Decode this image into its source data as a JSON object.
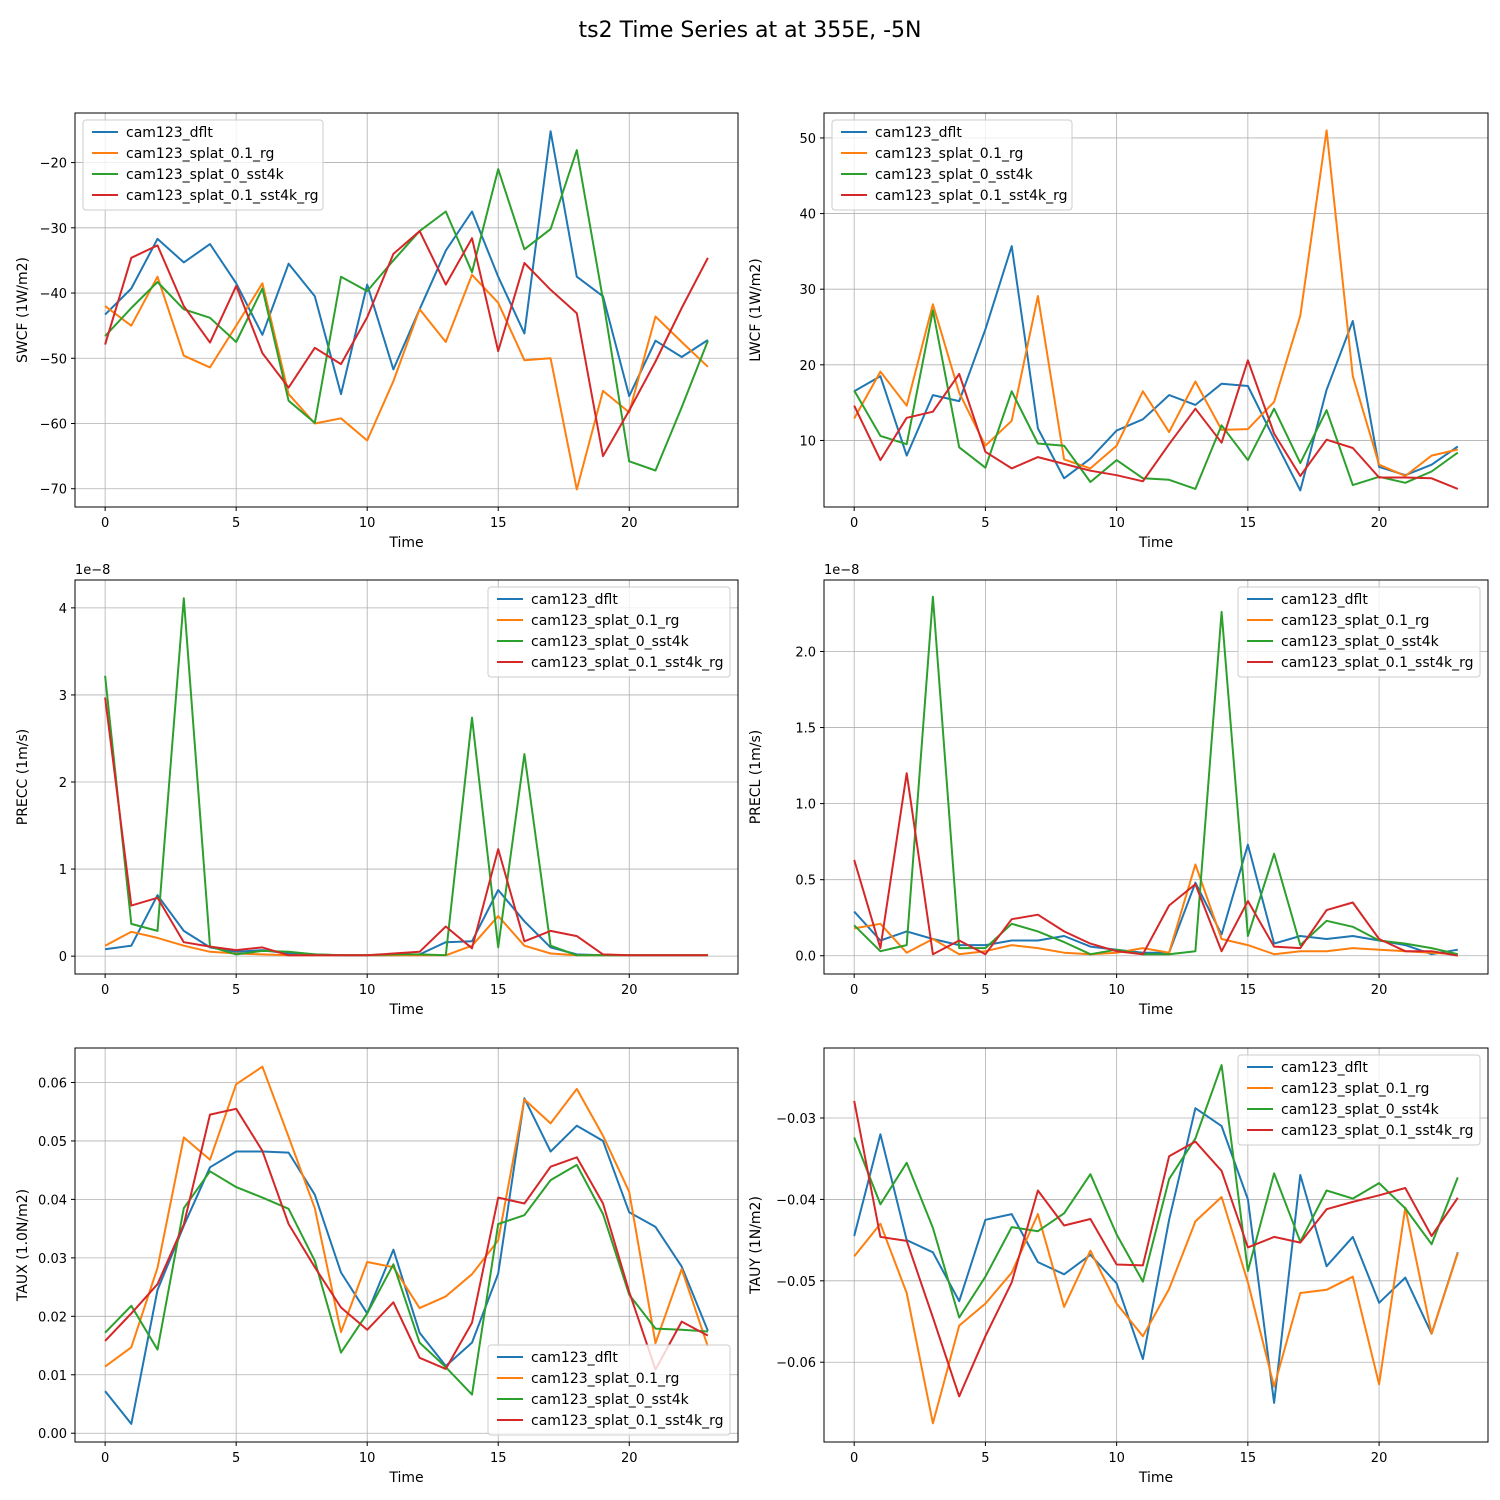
{
  "title": "ts2 Time Series at at 355E, -5N",
  "colors": [
    "#1f77b4",
    "#ff7f0e",
    "#2ca02c",
    "#d62728"
  ],
  "chart_data": [
    {
      "type": "line",
      "ylabel": "SWCF (1W/m2)",
      "xlabel": "Time",
      "xlim": [
        -1.15,
        24.15
      ],
      "ylim": [
        -72.8,
        -12.4
      ],
      "xticks": [
        0,
        5,
        10,
        15,
        20
      ],
      "yticks": [
        -70,
        -60,
        -50,
        -40,
        -30,
        -20
      ],
      "yticklabels": [
        "−70",
        "−60",
        "−50",
        "−40",
        "−30",
        "−20"
      ],
      "offset": "",
      "legend": "upper-left",
      "x": [
        0,
        1,
        2,
        3,
        4,
        5,
        6,
        7,
        8,
        9,
        10,
        11,
        12,
        13,
        14,
        15,
        16,
        17,
        18,
        19,
        20,
        21,
        22,
        23
      ],
      "series": [
        {
          "name": "cam123_dflt",
          "values": [
            -43.3,
            -39.3,
            -31.7,
            -35.3,
            -32.5,
            -38.5,
            -46.4,
            -35.5,
            -40.5,
            -55.5,
            -38.7,
            -51.7,
            -42.5,
            -33.5,
            -27.5,
            -37.5,
            -46.2,
            -15.2,
            -37.5,
            -40.5,
            -55.8,
            -47.3,
            -49.8,
            -47.2
          ]
        },
        {
          "name": "cam123_splat_0.1_rg",
          "values": [
            -42,
            -45,
            -37.5,
            -49.6,
            -51.4,
            -45,
            -38.5,
            -55.5,
            -60,
            -59.2,
            -62.6,
            -53.5,
            -42.5,
            -47.5,
            -37.2,
            -41.5,
            -50.3,
            -50,
            -70.1,
            -55,
            -58.3,
            -43.6,
            -47.5,
            -51.3
          ]
        },
        {
          "name": "cam123_splat_0_sst4k",
          "values": [
            -46.6,
            -42.3,
            -38.3,
            -42.5,
            -43.8,
            -47.5,
            -39.3,
            -56.5,
            -59.9,
            -37.5,
            -39.7,
            -35,
            -30.5,
            -27.5,
            -36.8,
            -21,
            -33.3,
            -30.2,
            -18.1,
            -41,
            -65.8,
            -67.2,
            -57.5,
            -47.3
          ]
        },
        {
          "name": "cam123_splat_0.1_sst4k_rg",
          "values": [
            -47.9,
            -34.6,
            -32.7,
            -42,
            -47.6,
            -38.9,
            -49.2,
            -54.5,
            -48.4,
            -50.9,
            -43.7,
            -34,
            -30.5,
            -38.7,
            -31.6,
            -48.9,
            -35.4,
            -39.5,
            -43.1,
            -65,
            -58,
            -50.5,
            -42.3,
            -34.6
          ]
        }
      ]
    },
    {
      "type": "line",
      "ylabel": "LWCF (1W/m2)",
      "xlabel": "Time",
      "xlim": [
        -1.15,
        24.15
      ],
      "ylim": [
        1.2,
        53.3
      ],
      "xticks": [
        0,
        5,
        10,
        15,
        20
      ],
      "yticks": [
        10,
        20,
        30,
        40,
        50
      ],
      "yticklabels": [
        "10",
        "20",
        "30",
        "40",
        "50"
      ],
      "offset": "",
      "legend": "upper-left",
      "x": [
        0,
        1,
        2,
        3,
        4,
        5,
        6,
        7,
        8,
        9,
        10,
        11,
        12,
        13,
        14,
        15,
        16,
        17,
        18,
        19,
        20,
        21,
        22,
        23
      ],
      "series": [
        {
          "name": "cam123_dflt",
          "values": [
            16.5,
            18.5,
            8,
            16,
            15.2,
            24.7,
            35.7,
            11.6,
            5,
            7.6,
            11.3,
            12.8,
            16,
            14.7,
            17.5,
            17.2,
            10.2,
            3.4,
            16.7,
            25.8,
            6.5,
            5.4,
            6.8,
            9.2
          ]
        },
        {
          "name": "cam123_splat_0.1_rg",
          "values": [
            12.9,
            19.1,
            14.6,
            28,
            16.3,
            9.3,
            12.6,
            29.1,
            7.5,
            6.3,
            9.3,
            16.5,
            11.1,
            17.8,
            11.4,
            11.5,
            15.1,
            26.5,
            51,
            18.5,
            6.8,
            5.3,
            8,
            8.8
          ]
        },
        {
          "name": "cam123_splat_0_sst4k",
          "values": [
            16.6,
            10.6,
            9.5,
            27.2,
            9.1,
            6.4,
            16.5,
            9.6,
            9.3,
            4.5,
            7.4,
            5,
            4.8,
            3.6,
            12,
            7.4,
            14.2,
            7,
            14,
            4.1,
            5.2,
            4.4,
            5.9,
            8.4
          ]
        },
        {
          "name": "cam123_splat_0.1_sst4k_rg",
          "values": [
            14.6,
            7.4,
            13,
            13.8,
            18.8,
            8.5,
            6.3,
            7.8,
            6.9,
            6,
            5.4,
            4.6,
            9.5,
            14.2,
            9.7,
            20.6,
            10.9,
            5.3,
            10.1,
            9,
            5.1,
            5.1,
            5,
            3.6
          ]
        }
      ]
    },
    {
      "type": "line",
      "ylabel": "PRECC (1m/s)",
      "xlabel": "Time",
      "xlim": [
        -1.15,
        24.15
      ],
      "ylim": [
        -0.205,
        4.32
      ],
      "xticks": [
        0,
        5,
        10,
        15,
        20
      ],
      "yticks": [
        0,
        1,
        2,
        3,
        4
      ],
      "yticklabels": [
        "0",
        "1",
        "2",
        "3",
        "4"
      ],
      "offset": "1e−8",
      "legend": "upper-right",
      "x": [
        0,
        1,
        2,
        3,
        4,
        5,
        6,
        7,
        8,
        9,
        10,
        11,
        12,
        13,
        14,
        15,
        16,
        17,
        18,
        19,
        20,
        21,
        22,
        23
      ],
      "series": [
        {
          "name": "cam123_dflt",
          "values": [
            0.08,
            0.12,
            0.7,
            0.29,
            0.1,
            0.05,
            0.07,
            0.03,
            0.02,
            0.01,
            0.01,
            0.01,
            0.02,
            0.16,
            0.17,
            0.76,
            0.4,
            0.1,
            0.02,
            0.01,
            0.01,
            0.01,
            0.01,
            0.01
          ]
        },
        {
          "name": "cam123_splat_0.1_rg",
          "values": [
            0.12,
            0.28,
            0.21,
            0.12,
            0.05,
            0.03,
            0.02,
            0.01,
            0.01,
            0.01,
            0.01,
            0.01,
            0.01,
            0.01,
            0.12,
            0.46,
            0.12,
            0.03,
            0.01,
            0.01,
            0.01,
            0.01,
            0.01,
            0.01
          ]
        },
        {
          "name": "cam123_splat_0_sst4k",
          "values": [
            3.22,
            0.37,
            0.29,
            4.11,
            0.11,
            0.02,
            0.06,
            0.05,
            0.02,
            0.01,
            0.01,
            0.02,
            0.02,
            0.01,
            2.74,
            0.1,
            2.32,
            0.12,
            0.01,
            0.01,
            0.01,
            0.01,
            0.01,
            0.01
          ]
        },
        {
          "name": "cam123_splat_0.1_sst4k_rg",
          "values": [
            2.97,
            0.58,
            0.67,
            0.16,
            0.11,
            0.07,
            0.1,
            0.01,
            0.01,
            0.01,
            0.01,
            0.03,
            0.05,
            0.34,
            0.09,
            1.23,
            0.17,
            0.29,
            0.23,
            0.02,
            0.01,
            0.01,
            0.01,
            0.01
          ]
        }
      ]
    },
    {
      "type": "line",
      "ylabel": "PRECL (1m/s)",
      "xlabel": "Time",
      "xlim": [
        -1.15,
        24.15
      ],
      "ylim": [
        -0.12,
        2.47
      ],
      "xticks": [
        0,
        5,
        10,
        15,
        20
      ],
      "yticks": [
        0,
        0.5,
        1.0,
        1.5,
        2.0
      ],
      "yticklabels": [
        "0.0",
        "0.5",
        "1.0",
        "1.5",
        "2.0"
      ],
      "offset": "1e−8",
      "legend": "upper-right",
      "x": [
        0,
        1,
        2,
        3,
        4,
        5,
        6,
        7,
        8,
        9,
        10,
        11,
        12,
        13,
        14,
        15,
        16,
        17,
        18,
        19,
        20,
        21,
        22,
        23
      ],
      "series": [
        {
          "name": "cam123_dflt",
          "values": [
            0.29,
            0.1,
            0.16,
            0.11,
            0.07,
            0.07,
            0.1,
            0.1,
            0.13,
            0.06,
            0.04,
            0.02,
            0.02,
            0.48,
            0.14,
            0.73,
            0.08,
            0.13,
            0.11,
            0.13,
            0.1,
            0.07,
            0.01,
            0.04
          ]
        },
        {
          "name": "cam123_splat_0.1_rg",
          "values": [
            0.18,
            0.21,
            0.02,
            0.11,
            0.01,
            0.03,
            0.07,
            0.05,
            0.02,
            0.01,
            0.02,
            0.05,
            0.02,
            0.6,
            0.11,
            0.07,
            0.01,
            0.03,
            0.03,
            0.05,
            0.04,
            0.03,
            0.02,
            0.01
          ]
        },
        {
          "name": "cam123_splat_0_sst4k",
          "values": [
            0.2,
            0.03,
            0.07,
            2.36,
            0.05,
            0.05,
            0.21,
            0.16,
            0.09,
            0.01,
            0.04,
            0.01,
            0.01,
            0.03,
            2.26,
            0.13,
            0.67,
            0.07,
            0.23,
            0.19,
            0.1,
            0.08,
            0.05,
            0.01
          ]
        },
        {
          "name": "cam123_splat_0.1_sst4k_rg",
          "values": [
            0.63,
            0.05,
            1.2,
            0.01,
            0.1,
            0.01,
            0.24,
            0.27,
            0.16,
            0.08,
            0.03,
            0.01,
            0.33,
            0.47,
            0.03,
            0.36,
            0.06,
            0.05,
            0.3,
            0.35,
            0.11,
            0.03,
            0.03,
            0
          ]
        }
      ]
    },
    {
      "type": "line",
      "ylabel": "TAUX (1.0N/m2)",
      "xlabel": "Time",
      "xlim": [
        -1.15,
        24.15
      ],
      "ylim": [
        -0.0015,
        0.0659
      ],
      "xticks": [
        0,
        5,
        10,
        15,
        20
      ],
      "yticks": [
        0,
        0.01,
        0.02,
        0.03,
        0.04,
        0.05,
        0.06
      ],
      "yticklabels": [
        "0.00",
        "0.01",
        "0.02",
        "0.03",
        "0.04",
        "0.05",
        "0.06"
      ],
      "offset": "",
      "legend": "lower-right",
      "x": [
        0,
        1,
        2,
        3,
        4,
        5,
        6,
        7,
        8,
        9,
        10,
        11,
        12,
        13,
        14,
        15,
        16,
        17,
        18,
        19,
        20,
        21,
        22,
        23
      ],
      "series": [
        {
          "name": "cam123_dflt",
          "values": [
            0.0072,
            0.0016,
            0.0245,
            0.0355,
            0.0455,
            0.0482,
            0.0482,
            0.048,
            0.0408,
            0.0275,
            0.0205,
            0.0314,
            0.0172,
            0.0115,
            0.0155,
            0.0273,
            0.0573,
            0.0482,
            0.0526,
            0.05,
            0.0378,
            0.0353,
            0.0285,
            0.0175
          ]
        },
        {
          "name": "cam123_splat_0.1_rg",
          "values": [
            0.0114,
            0.0147,
            0.0283,
            0.0506,
            0.0468,
            0.0597,
            0.0627,
            0.0507,
            0.0385,
            0.0173,
            0.0293,
            0.0284,
            0.0214,
            0.0234,
            0.0272,
            0.033,
            0.0571,
            0.053,
            0.0589,
            0.0509,
            0.0413,
            0.0154,
            0.0281,
            0.0148
          ]
        },
        {
          "name": "cam123_splat_0_sst4k",
          "values": [
            0.0172,
            0.0218,
            0.0143,
            0.0385,
            0.0448,
            0.0421,
            0.0403,
            0.0384,
            0.0295,
            0.0138,
            0.0205,
            0.0289,
            0.0155,
            0.0113,
            0.0066,
            0.0358,
            0.0373,
            0.0433,
            0.0459,
            0.0375,
            0.0237,
            0.0179,
            0.0177,
            0.0174
          ]
        },
        {
          "name": "cam123_splat_0.1_sst4k_rg",
          "values": [
            0.0158,
            0.0205,
            0.0255,
            0.0357,
            0.0545,
            0.0555,
            0.0483,
            0.0358,
            0.0284,
            0.0215,
            0.0177,
            0.0224,
            0.0129,
            0.011,
            0.0189,
            0.0403,
            0.0393,
            0.0456,
            0.0472,
            0.0393,
            0.0242,
            0.0109,
            0.0191,
            0.0167
          ]
        }
      ]
    },
    {
      "type": "line",
      "ylabel": "TAUY (1N/m2)",
      "xlabel": "Time",
      "xlim": [
        -1.15,
        24.15
      ],
      "ylim": [
        -0.0698,
        -0.0214
      ],
      "xticks": [
        0,
        5,
        10,
        15,
        20
      ],
      "yticks": [
        -0.06,
        -0.05,
        -0.04,
        -0.03
      ],
      "yticklabels": [
        "−0.06",
        "−0.05",
        "−0.04",
        "−0.03"
      ],
      "offset": "",
      "legend": "upper-right",
      "x": [
        0,
        1,
        2,
        3,
        4,
        5,
        6,
        7,
        8,
        9,
        10,
        11,
        12,
        13,
        14,
        15,
        16,
        17,
        18,
        19,
        20,
        21,
        22,
        23
      ],
      "series": [
        {
          "name": "cam123_dflt",
          "values": [
            -0.0445,
            -0.032,
            -0.045,
            -0.0465,
            -0.0525,
            -0.0425,
            -0.0418,
            -0.0477,
            -0.0492,
            -0.0468,
            -0.0503,
            -0.0596,
            -0.0425,
            -0.0288,
            -0.031,
            -0.04,
            -0.065,
            -0.037,
            -0.0482,
            -0.0446,
            -0.0527,
            -0.0496,
            -0.0565,
            -0.0465
          ]
        },
        {
          "name": "cam123_splat_0.1_rg",
          "values": [
            -0.047,
            -0.043,
            -0.0515,
            -0.0675,
            -0.0555,
            -0.0528,
            -0.049,
            -0.0418,
            -0.0532,
            -0.0463,
            -0.0528,
            -0.0568,
            -0.051,
            -0.0427,
            -0.0397,
            -0.0502,
            -0.063,
            -0.0515,
            -0.0511,
            -0.0495,
            -0.0627,
            -0.041,
            -0.0565,
            -0.0466
          ]
        },
        {
          "name": "cam123_splat_0_sst4k",
          "values": [
            -0.0324,
            -0.0406,
            -0.0355,
            -0.0435,
            -0.0545,
            -0.0495,
            -0.0434,
            -0.0439,
            -0.0417,
            -0.0369,
            -0.0443,
            -0.0501,
            -0.0375,
            -0.0325,
            -0.0235,
            -0.0488,
            -0.0368,
            -0.0452,
            -0.0389,
            -0.0399,
            -0.038,
            -0.0411,
            -0.0455,
            -0.0373
          ]
        },
        {
          "name": "cam123_splat_0.1_sst4k_rg",
          "values": [
            -0.0279,
            -0.0446,
            -0.0451,
            -0.0545,
            -0.0642,
            -0.0568,
            -0.0502,
            -0.0389,
            -0.0432,
            -0.0424,
            -0.048,
            -0.0481,
            -0.0347,
            -0.0329,
            -0.0365,
            -0.0459,
            -0.0446,
            -0.0453,
            -0.0412,
            -0.0403,
            -0.0395,
            -0.0386,
            -0.0445,
            -0.0398
          ]
        }
      ]
    }
  ]
}
